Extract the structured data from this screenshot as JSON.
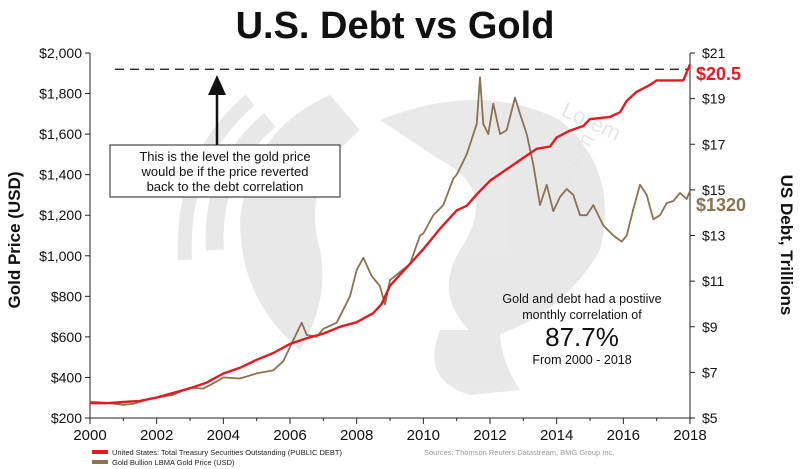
{
  "chart_data": {
    "type": "line",
    "title": "U.S. Debt vs Gold",
    "ylabel_left": "Gold Price (USD)",
    "ylabel_right": "US Debt, Trillions",
    "xlabel": "",
    "xlim": [
      2000,
      2018
    ],
    "ylim_left": [
      200,
      2000
    ],
    "ylim_right": [
      5,
      21
    ],
    "x_ticks": [
      "2000",
      "2002",
      "2004",
      "2006",
      "2008",
      "2010",
      "2012",
      "2014",
      "2016",
      "2018"
    ],
    "y_ticks_left": [
      "$200",
      "$400",
      "$600",
      "$800",
      "$1,000",
      "$1,200",
      "$1,400",
      "$1,600",
      "$1,800",
      "$2,000"
    ],
    "y_ticks_right": [
      "$5",
      "$7",
      "$9",
      "$11",
      "$13",
      "$15",
      "$17",
      "$19",
      "$21"
    ],
    "grid": false,
    "legend_position": "bottom-left",
    "series": [
      {
        "name": "United States: Total Treasury Securities Outstanding (PUBLIC DEBT)",
        "axis": "right",
        "color": "#e21b23",
        "x": [
          2000.0,
          2000.5,
          2001.0,
          2001.5,
          2002.0,
          2002.5,
          2003.0,
          2003.5,
          2004.0,
          2004.5,
          2005.0,
          2005.5,
          2006.0,
          2006.5,
          2007.0,
          2007.5,
          2008.0,
          2008.5,
          2008.75,
          2009.0,
          2009.5,
          2010.0,
          2010.5,
          2011.0,
          2011.3,
          2011.6,
          2012.0,
          2012.5,
          2013.0,
          2013.4,
          2013.8,
          2014.0,
          2014.4,
          2014.8,
          2015.0,
          2015.3,
          2015.6,
          2015.9,
          2016.1,
          2016.4,
          2016.8,
          2017.0,
          2017.2,
          2017.5,
          2017.8,
          2018.0
        ],
        "y": [
          5.65,
          5.65,
          5.7,
          5.75,
          5.9,
          6.1,
          6.3,
          6.55,
          6.95,
          7.2,
          7.55,
          7.85,
          8.25,
          8.5,
          8.7,
          9.0,
          9.2,
          9.6,
          10.0,
          10.8,
          11.6,
          12.4,
          13.3,
          14.1,
          14.3,
          14.8,
          15.4,
          15.9,
          16.4,
          16.8,
          16.9,
          17.3,
          17.6,
          17.8,
          18.1,
          18.15,
          18.2,
          18.4,
          18.9,
          19.3,
          19.6,
          19.8,
          19.8,
          19.8,
          19.8,
          20.5
        ]
      },
      {
        "name": "Gold Bullion LBMA Gold Price (USD)",
        "axis": "left",
        "color": "#8b7250",
        "x": [
          2000.0,
          2000.5,
          2001.0,
          2001.3,
          2001.7,
          2002.0,
          2002.5,
          2003.0,
          2003.4,
          2003.8,
          2004.0,
          2004.5,
          2005.0,
          2005.5,
          2005.8,
          2006.0,
          2006.35,
          2006.5,
          2006.8,
          2007.0,
          2007.4,
          2007.8,
          2008.0,
          2008.2,
          2008.45,
          2008.7,
          2008.85,
          2009.0,
          2009.3,
          2009.6,
          2009.9,
          2010.0,
          2010.3,
          2010.6,
          2010.9,
          2011.0,
          2011.3,
          2011.6,
          2011.7,
          2011.8,
          2011.95,
          2012.1,
          2012.3,
          2012.5,
          2012.75,
          2012.9,
          2013.1,
          2013.3,
          2013.5,
          2013.7,
          2013.9,
          2014.1,
          2014.3,
          2014.5,
          2014.7,
          2014.9,
          2015.1,
          2015.4,
          2015.7,
          2015.95,
          2016.1,
          2016.3,
          2016.5,
          2016.7,
          2016.9,
          2017.1,
          2017.3,
          2017.5,
          2017.7,
          2017.9,
          2018.0
        ],
        "y": [
          280,
          275,
          265,
          270,
          290,
          300,
          315,
          350,
          345,
          380,
          400,
          395,
          420,
          435,
          480,
          550,
          670,
          610,
          600,
          640,
          670,
          800,
          930,
          990,
          900,
          850,
          760,
          880,
          920,
          960,
          1100,
          1110,
          1200,
          1250,
          1380,
          1400,
          1500,
          1650,
          1880,
          1650,
          1600,
          1750,
          1600,
          1620,
          1780,
          1700,
          1600,
          1450,
          1250,
          1350,
          1220,
          1290,
          1330,
          1300,
          1200,
          1200,
          1250,
          1150,
          1100,
          1070,
          1100,
          1230,
          1350,
          1300,
          1180,
          1200,
          1260,
          1270,
          1310,
          1280,
          1320
        ]
      }
    ],
    "reference_line": {
      "axis": "left",
      "value": 1920,
      "style": "dashed"
    },
    "end_labels": {
      "debt": "$20.5",
      "gold": "$1320"
    },
    "annotations": {
      "callout_lines": [
        "This is the level the gold price",
        "would be if the price reverted",
        "back to the debt correlation"
      ],
      "corr_lines": [
        "Gold and debt had a postiive",
        "monthly correlation of"
      ],
      "corr_value": "87.7%",
      "corr_period": "From 2000 - 2018",
      "sources": "Sources: Thomson Reuters Datastream, BMG Group Inc."
    },
    "watermark_text": [
      "Lorem",
      "Ipsum"
    ]
  }
}
